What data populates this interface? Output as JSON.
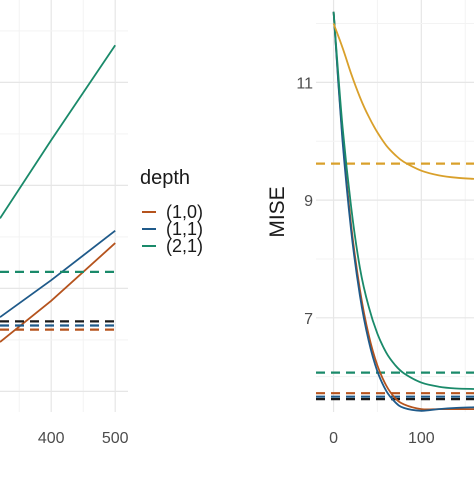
{
  "chart_data": [
    {
      "type": "line",
      "title": "",
      "xlabel": "",
      "ylabel": "",
      "xlim": [
        320,
        520
      ],
      "ylim": [
        0,
        1
      ],
      "x_ticks": [
        "400",
        "500"
      ],
      "grid": true,
      "series": [
        {
          "name": "(1,0)",
          "style": "solid",
          "x": [
            320,
            400,
            500
          ],
          "y": [
            0.17,
            0.27,
            0.41
          ]
        },
        {
          "name": "(1,1)",
          "style": "solid",
          "x": [
            320,
            400,
            500
          ],
          "y": [
            0.23,
            0.32,
            0.44
          ]
        },
        {
          "name": "(2,1)",
          "style": "solid",
          "x": [
            320,
            400,
            500
          ],
          "y": [
            0.47,
            0.66,
            0.89
          ]
        },
        {
          "name": "(1,0)",
          "style": "dashed",
          "x": [
            320,
            500
          ],
          "y": [
            0.2,
            0.2
          ]
        },
        {
          "name": "(1,1)",
          "style": "dashed",
          "x": [
            320,
            500
          ],
          "y": [
            0.21,
            0.21
          ]
        },
        {
          "name": "(2,1)",
          "style": "dashed",
          "x": [
            320,
            500
          ],
          "y": [
            0.34,
            0.34
          ]
        },
        {
          "name": "",
          "style": "dashed",
          "x": [
            320,
            500
          ],
          "y": [
            0.22,
            0.22
          ]
        }
      ]
    },
    {
      "type": "line",
      "title": "",
      "xlabel": "",
      "ylabel": "MISE",
      "xlim": [
        -20,
        160
      ],
      "ylim": [
        5.4,
        12.4
      ],
      "x_ticks": [
        "0",
        "100"
      ],
      "y_ticks": [
        "7",
        "9",
        "11"
      ],
      "grid": true,
      "series": [
        {
          "name": "(1,0)",
          "style": "solid",
          "x": [
            0,
            10,
            20,
            30,
            40,
            50,
            60,
            70,
            80,
            100,
            120,
            140,
            160
          ],
          "y": [
            12.2,
            10.11,
            8.58,
            7.48,
            6.71,
            6.19,
            5.85,
            5.64,
            5.53,
            5.45,
            5.45,
            5.45,
            5.45
          ]
        },
        {
          "name": "(1,1)",
          "style": "solid",
          "x": [
            0,
            10,
            20,
            30,
            40,
            50,
            60,
            70,
            80,
            100,
            120,
            140,
            160
          ],
          "y": [
            12.2,
            10.05,
            8.49,
            7.38,
            6.61,
            6.09,
            5.76,
            5.57,
            5.47,
            5.42,
            5.45,
            5.47,
            5.48
          ]
        },
        {
          "name": "(2,1)",
          "style": "solid",
          "x": [
            0,
            10,
            20,
            30,
            40,
            50,
            60,
            70,
            80,
            100,
            120,
            140,
            160
          ],
          "y": [
            12.2,
            10.29,
            8.89,
            7.85,
            7.19,
            6.73,
            6.41,
            6.2,
            6.06,
            5.9,
            5.83,
            5.8,
            5.79
          ]
        },
        {
          "name": "",
          "style": "solid",
          "x": [
            0,
            10,
            20,
            30,
            40,
            50,
            60,
            70,
            80,
            100,
            120,
            140,
            160
          ],
          "y": [
            12.0,
            11.6,
            11.15,
            10.75,
            10.42,
            10.15,
            9.93,
            9.77,
            9.65,
            9.5,
            9.42,
            9.38,
            9.36
          ]
        },
        {
          "name": "",
          "style": "dashed",
          "x": [
            -20,
            160
          ],
          "y": [
            9.62,
            9.62
          ]
        },
        {
          "name": "(2,1)",
          "style": "dashed",
          "x": [
            -20,
            160
          ],
          "y": [
            6.07,
            6.07
          ]
        },
        {
          "name": "(1,0)",
          "style": "dashed",
          "x": [
            -20,
            160
          ],
          "y": [
            5.72,
            5.72
          ]
        },
        {
          "name": "(1,1)",
          "style": "dashed",
          "x": [
            -20,
            160
          ],
          "y": [
            5.66,
            5.66
          ]
        },
        {
          "name": "",
          "style": "dashed",
          "x": [
            -20,
            160
          ],
          "y": [
            5.62,
            5.62
          ]
        }
      ]
    }
  ],
  "legend": {
    "title": "depth",
    "items": [
      {
        "label": "(1,0)",
        "color": "#b5531d"
      },
      {
        "label": "(1,1)",
        "color": "#1f5a8a"
      },
      {
        "label": "(2,1)",
        "color": "#1a8a6a"
      }
    ]
  },
  "colors": {
    "s10": "#b5531d",
    "s11": "#1f5a8a",
    "s21": "#1a8a6a",
    "gold": "#d9a02b",
    "black": "#1a1a1a",
    "grid_major": "#e6e6e6",
    "grid_minor": "#f3f3f3"
  }
}
